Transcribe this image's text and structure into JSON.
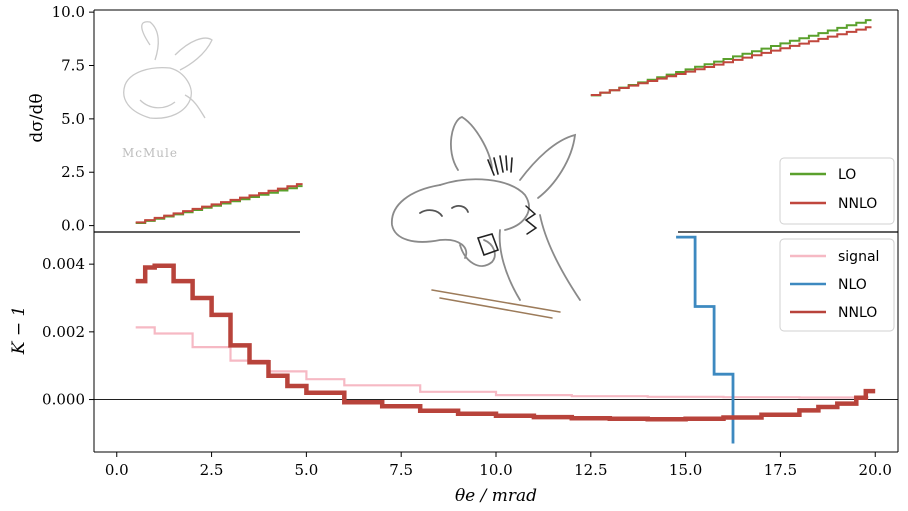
{
  "chart_data": [
    {
      "type": "line",
      "panel": "top",
      "ylabel": "dσ/dθ",
      "ylim": [
        -0.3,
        10.1
      ],
      "yticks": [
        "0.0",
        "2.5",
        "5.0",
        "7.5",
        "10.0"
      ],
      "xlim": [
        -0.6,
        20.6
      ],
      "drawstyle": "steps",
      "segments": [
        [
          0.5,
          4.9
        ],
        [
          12.5,
          19.9
        ]
      ],
      "series": [
        {
          "name": "LO",
          "color": "#5aa02c",
          "x": [
            0.5,
            5.0,
            12.5,
            20.0
          ],
          "y": [
            0.12,
            1.95,
            6.1,
            9.75
          ]
        },
        {
          "name": "NNLO",
          "color": "#c0473d",
          "x": [
            0.5,
            5.0,
            12.5,
            20.0
          ],
          "y": [
            0.15,
            2.05,
            6.12,
            9.4
          ]
        }
      ],
      "legend": {
        "placement": "lower-right",
        "entries": [
          "LO",
          "NNLO"
        ]
      }
    },
    {
      "type": "line",
      "panel": "bottom",
      "xlabel": "θe / mrad",
      "ylabel": "K − 1",
      "xlim": [
        -0.6,
        20.6
      ],
      "ylim": [
        -0.00155,
        0.00495
      ],
      "xticks": [
        "0.0",
        "2.5",
        "5.0",
        "7.5",
        "10.0",
        "12.5",
        "15.0",
        "17.5",
        "20.0"
      ],
      "yticks": [
        "0.000",
        "0.002",
        "0.004"
      ],
      "yvalues": [
        0,
        0.002,
        0.004
      ],
      "drawstyle": "steps",
      "series": [
        {
          "name": "signal",
          "color": "#f6b9c4",
          "x": [
            0.5,
            1,
            2,
            3,
            4,
            5,
            6,
            8,
            10,
            12,
            14,
            16,
            18,
            19.8
          ],
          "y": [
            0.00213,
            0.00195,
            0.00155,
            0.00115,
            0.00083,
            0.0006,
            0.00042,
            0.00023,
            0.00013,
            0.0001,
            8e-05,
            7e-05,
            6e-05,
            5e-05
          ]
        },
        {
          "name": "NLO",
          "color": "#3d89c0",
          "x": [
            14.75,
            15.25,
            15.75,
            16.25
          ],
          "y": [
            0.0048,
            0.00275,
            0.00075,
            -0.0013
          ]
        },
        {
          "name": "NNLO",
          "color": "#b8433b",
          "x": [
            0.5,
            0.75,
            1.0,
            1.5,
            2.0,
            2.5,
            3.0,
            3.5,
            4.0,
            4.5,
            5.0,
            6.0,
            7.0,
            8.0,
            9.0,
            10.0,
            11.0,
            12.0,
            13.0,
            14.0,
            15.0,
            16.0,
            17.0,
            18.0,
            18.5,
            19.0,
            19.5,
            19.75,
            20.0
          ],
          "y": [
            0.0035,
            0.0039,
            0.00395,
            0.0035,
            0.003,
            0.0025,
            0.0016,
            0.0011,
            0.0007,
            0.0004,
            0.0002,
            -8e-05,
            -0.0002,
            -0.00033,
            -0.00042,
            -0.00048,
            -0.00052,
            -0.00055,
            -0.00057,
            -0.00058,
            -0.00057,
            -0.00053,
            -0.00045,
            -0.00032,
            -0.00022,
            -0.00012,
            5e-05,
            0.00025,
            0.00025
          ]
        }
      ],
      "legend": {
        "placement": "upper-right",
        "entries": [
          "signal",
          "NLO",
          "NNLO"
        ]
      }
    }
  ],
  "logo": {
    "text": "McMule"
  }
}
